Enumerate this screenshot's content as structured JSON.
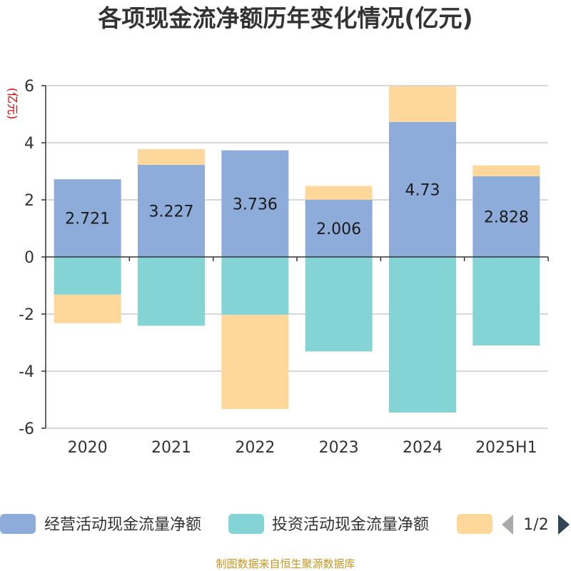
{
  "chart_data": {
    "type": "bar",
    "stacked": true,
    "title": "各项现金流净额历年变化情况(亿元)",
    "unit_label": "(亿元)",
    "categories": [
      "2020",
      "2021",
      "2022",
      "2023",
      "2024",
      "2025H1"
    ],
    "ylim": [
      -6,
      6
    ],
    "yticks": [
      6,
      4,
      2,
      0,
      -2,
      -4,
      -6
    ],
    "grid": true,
    "legend_position": "bottom",
    "series": [
      {
        "name": "经营活动现金流量净额",
        "color": "#8eacd9",
        "values": [
          2.721,
          3.227,
          3.736,
          2.006,
          4.73,
          2.828
        ],
        "show_labels": true
      },
      {
        "name": "投资活动现金流量净额",
        "color": "#84d4d6",
        "values": [
          -1.32,
          -2.41,
          -2.03,
          -3.31,
          -5.45,
          -3.1
        ],
        "show_labels": false
      },
      {
        "name": "",
        "color": "#fdd89a",
        "values": [
          -1.0,
          0.55,
          -3.3,
          0.48,
          1.25,
          0.38
        ],
        "show_labels": false
      }
    ],
    "source": "制图数据来自恒生聚源数据库"
  },
  "legend": {
    "page_indicator": "1/2"
  }
}
